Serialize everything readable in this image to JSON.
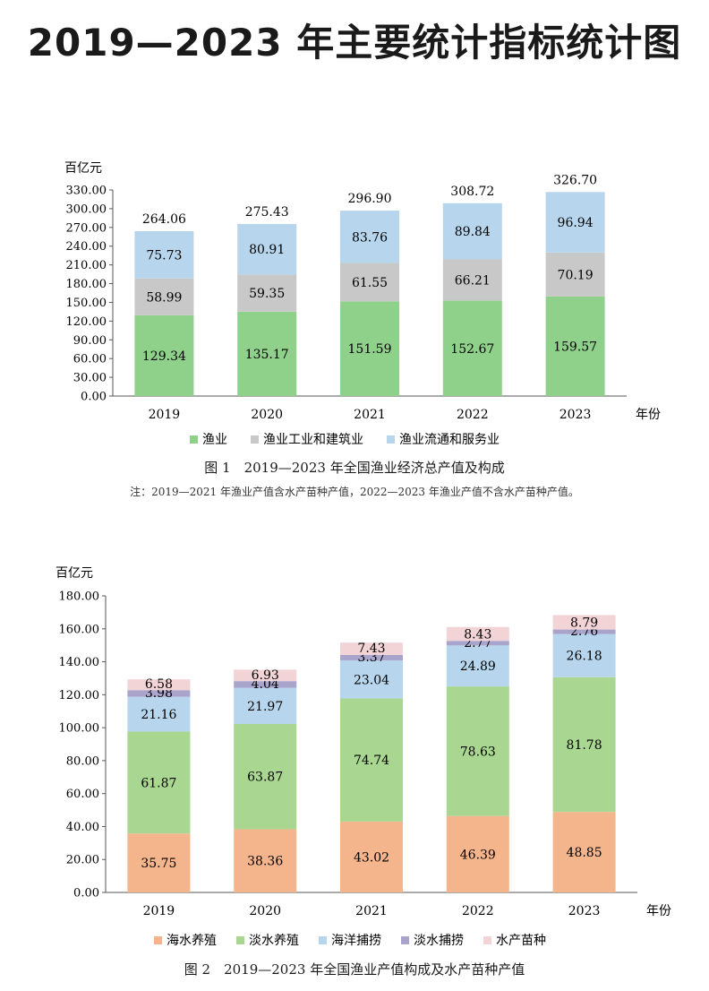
{
  "page": {
    "title": "2019—2023 年主要统计指标统计图"
  },
  "chart_data": [
    {
      "type": "bar",
      "stacked": true,
      "unit_label": "百亿元",
      "xlabel": "年份",
      "categories": [
        "2019",
        "2020",
        "2021",
        "2022",
        "2023"
      ],
      "ylim": [
        0,
        330
      ],
      "yticks": [
        "0.00",
        "30.00",
        "60.00",
        "90.00",
        "120.00",
        "150.00",
        "180.00",
        "210.00",
        "240.00",
        "270.00",
        "300.00",
        "330.00"
      ],
      "series": [
        {
          "name": "渔业",
          "color": "#8fd18b",
          "values": [
            129.34,
            135.17,
            151.59,
            152.67,
            159.57
          ],
          "labels": [
            "129.34",
            "135.17",
            "151.59",
            "152.67",
            "159.57"
          ]
        },
        {
          "name": "渔业工业和建筑业",
          "color": "#c8c8c8",
          "values": [
            58.99,
            59.35,
            61.55,
            66.21,
            70.19
          ],
          "labels": [
            "58.99",
            "59.35",
            "61.55",
            "66.21",
            "70.19"
          ]
        },
        {
          "name": "渔业流通和服务业",
          "color": "#b7d6ed",
          "values": [
            75.73,
            80.91,
            83.76,
            89.84,
            96.94
          ],
          "labels": [
            "75.73",
            "80.91",
            "83.76",
            "89.84",
            "96.94"
          ]
        }
      ],
      "totals": [
        "264.06",
        "275.43",
        "296.90",
        "308.72",
        "326.70"
      ],
      "legend": "bottom",
      "caption": "图 1　2019—2023 年全国渔业经济总产值及构成",
      "note": "注：2019—2021 年渔业产值含水产苗种产值，2022—2023 年渔业产值不含水产苗种产值。"
    },
    {
      "type": "bar",
      "stacked": true,
      "unit_label": "百亿元",
      "xlabel": "年份",
      "categories": [
        "2019",
        "2020",
        "2021",
        "2022",
        "2023"
      ],
      "ylim": [
        0,
        180
      ],
      "yticks": [
        "0.00",
        "20.00",
        "40.00",
        "60.00",
        "80.00",
        "100.00",
        "120.00",
        "140.00",
        "160.00",
        "180.00"
      ],
      "series": [
        {
          "name": "海水养殖",
          "color": "#f5b58c",
          "values": [
            35.75,
            38.36,
            43.02,
            46.39,
            48.85
          ],
          "labels": [
            "35.75",
            "38.36",
            "43.02",
            "46.39",
            "48.85"
          ]
        },
        {
          "name": "淡水养殖",
          "color": "#a9d690",
          "values": [
            61.87,
            63.87,
            74.74,
            78.63,
            81.78
          ],
          "labels": [
            "61.87",
            "63.87",
            "74.74",
            "78.63",
            "81.78"
          ]
        },
        {
          "name": "海洋捕捞",
          "color": "#b7d6ed",
          "values": [
            21.16,
            21.97,
            23.04,
            24.89,
            26.18
          ],
          "labels": [
            "21.16",
            "21.97",
            "23.04",
            "24.89",
            "26.18"
          ]
        },
        {
          "name": "淡水捕捞",
          "color": "#a8a4cc",
          "values": [
            3.98,
            4.04,
            3.37,
            2.77,
            2.76
          ],
          "labels": [
            "3.98",
            "4.04",
            "3.37",
            "2.77",
            "2.76"
          ]
        },
        {
          "name": "水产苗种",
          "color": "#f2d3d6",
          "values": [
            6.58,
            6.93,
            7.43,
            8.43,
            8.79
          ],
          "labels": [
            "6.58",
            "6.93",
            "7.43",
            "8.43",
            "8.79"
          ]
        }
      ],
      "legend": "bottom",
      "caption": "图 2　2019—2023 年全国渔业产值构成及水产苗种产值"
    }
  ]
}
